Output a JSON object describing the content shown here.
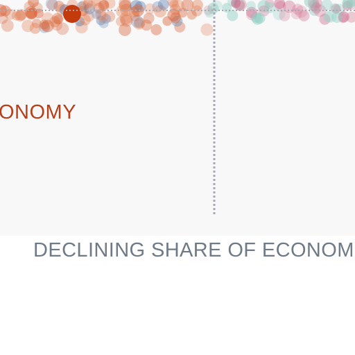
{
  "chart_data": {
    "type": "scatter",
    "series_label": "ONOMY",
    "xlabel": "DECLINING SHARE OF ECONOM",
    "colors": {
      "panel_background": "#f8f8f9",
      "divider": "#a9a9b3",
      "series_label": "#b5401a",
      "axis_label": "#6e7a86",
      "highlight": "#c33b0c",
      "palette": [
        "#d9653a",
        "#e58a61",
        "#4f74a8",
        "#7b95bd",
        "#8fcfc3",
        "#d47c98",
        "#c24a75"
      ]
    }
  }
}
